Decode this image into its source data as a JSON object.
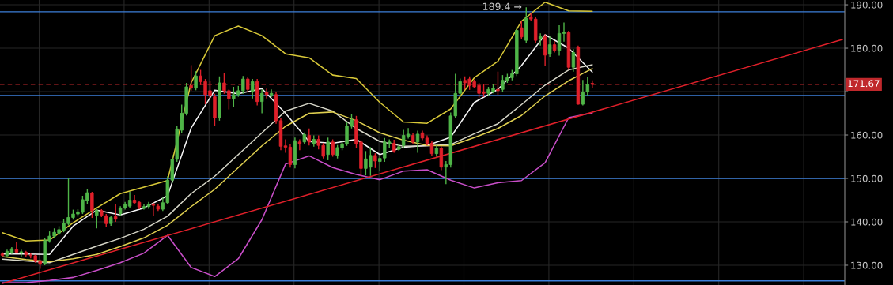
{
  "chart_data": {
    "type": "candlestick",
    "categories": [
      null,
      null,
      null,
      null,
      null,
      null,
      null,
      null,
      null,
      null,
      null,
      null,
      null,
      null,
      null,
      null,
      null,
      null,
      null,
      null,
      null,
      null,
      null,
      null,
      null,
      null,
      null,
      null,
      null,
      null,
      null,
      null,
      null,
      null,
      null,
      null,
      null,
      null,
      null,
      null,
      null,
      null,
      null,
      null,
      null,
      null,
      null,
      null,
      null,
      null,
      null,
      null,
      null,
      null,
      null,
      null,
      null,
      null,
      null,
      null,
      null,
      null,
      null,
      null,
      null,
      null,
      null,
      null,
      null,
      null,
      null,
      null,
      null,
      null,
      null,
      null,
      null,
      null,
      null,
      null,
      null,
      null,
      null,
      null,
      null,
      null,
      null,
      null,
      null,
      null,
      null,
      null,
      null,
      null,
      null,
      null,
      null,
      null,
      null,
      null,
      null,
      null,
      null,
      null,
      null,
      null,
      null,
      null,
      null,
      null,
      null,
      null,
      null,
      null,
      null,
      null,
      null,
      null,
      null,
      null,
      null,
      null,
      null,
      null,
      null,
      null,
      null,
      null,
      null,
      null,
      null,
      null,
      null,
      null,
      null,
      null,
      null,
      null,
      null,
      null,
      null,
      null,
      null,
      null,
      null,
      null,
      null,
      null,
      null,
      null,
      null,
      null,
      null,
      null,
      null,
      null,
      null,
      null,
      null,
      null,
      null,
      null,
      null,
      null,
      null,
      null,
      null,
      null,
      null,
      null,
      null,
      null,
      null,
      null,
      null,
      null,
      null,
      null,
      null
    ],
    "ohlc": [
      [
        132.6,
        133,
        131.8,
        132.3
      ],
      [
        132.2,
        133.6,
        131.9,
        133.2
      ],
      [
        132.9,
        134.2,
        132.6,
        133.8
      ],
      [
        133.6,
        135.4,
        132.8,
        133.0
      ],
      [
        132.8,
        133.6,
        132.0,
        133.1
      ],
      [
        133.0,
        133.3,
        131.9,
        132.4
      ],
      [
        132.3,
        132.8,
        131.6,
        132.2
      ],
      [
        132.2,
        132.4,
        130.6,
        130.9
      ],
      [
        131.0,
        131.3,
        129.2,
        130.2
      ],
      [
        130.3,
        136.2,
        130.0,
        135.7
      ],
      [
        135.6,
        137.8,
        135.2,
        136.7
      ],
      [
        136.7,
        138.5,
        136.3,
        137.6
      ],
      [
        137.4,
        139.0,
        137.0,
        138.2
      ],
      [
        138.1,
        140.6,
        137.6,
        139.7
      ],
      [
        139.6,
        150.0,
        139.2,
        141.0
      ],
      [
        141.0,
        142.8,
        140.5,
        141.8
      ],
      [
        141.8,
        142.9,
        141.2,
        142.3
      ],
      [
        142.2,
        146.0,
        141.8,
        145.1
      ],
      [
        144.9,
        147.6,
        144.0,
        146.7
      ],
      [
        146.6,
        146.9,
        140.9,
        142.6
      ],
      [
        141.5,
        143.0,
        138.5,
        142.6
      ],
      [
        142.6,
        142.9,
        141.1,
        141.5
      ],
      [
        141.4,
        141.8,
        138.9,
        139.6
      ],
      [
        139.6,
        141.4,
        139.1,
        141.0
      ],
      [
        141.2,
        144.2,
        140.0,
        140.6
      ],
      [
        141.9,
        143.6,
        141.3,
        143.2
      ],
      [
        143.2,
        144.6,
        142.8,
        144.1
      ],
      [
        143.6,
        146.9,
        143.1,
        145.0
      ],
      [
        145.0,
        146.2,
        144.0,
        144.4
      ],
      [
        144.5,
        144.9,
        142.9,
        143.4
      ],
      [
        143.1,
        144.0,
        142.8,
        143.5
      ],
      [
        143.5,
        144.6,
        143.0,
        144.1
      ],
      [
        144.0,
        144.4,
        141.4,
        143.8
      ],
      [
        143.6,
        144.0,
        142.5,
        142.9
      ],
      [
        142.9,
        145.6,
        142.5,
        144.4
      ],
      [
        144.4,
        150.5,
        144.0,
        149.6
      ],
      [
        149.6,
        155.5,
        149.0,
        154.4
      ],
      [
        154.4,
        162.0,
        153.8,
        161.4
      ],
      [
        161.1,
        167.0,
        160.5,
        165.0
      ],
      [
        165.0,
        172.0,
        164.5,
        171.1
      ],
      [
        171.4,
        176.1,
        170.2,
        170.8
      ],
      [
        170.8,
        174.7,
        170.3,
        173.6
      ],
      [
        173.6,
        175.0,
        171.5,
        172.3
      ],
      [
        172.3,
        172.9,
        167.1,
        169.3
      ],
      [
        170.2,
        172.5,
        168.5,
        169.2
      ],
      [
        168.8,
        169.5,
        162.1,
        164.0
      ],
      [
        164.0,
        173.5,
        163.3,
        172.0
      ],
      [
        172.0,
        174.2,
        169.5,
        170.2
      ],
      [
        170.2,
        170.5,
        165.9,
        168.4
      ],
      [
        168.4,
        171.1,
        166.5,
        169.3
      ],
      [
        169.3,
        171.3,
        168.8,
        170.2
      ],
      [
        170.2,
        173.6,
        169.5,
        172.9
      ],
      [
        172.9,
        173.4,
        169.9,
        170.5
      ],
      [
        169.9,
        172.9,
        168.4,
        172.3
      ],
      [
        172.3,
        172.9,
        166.8,
        167.7
      ],
      [
        167.7,
        170.5,
        165.0,
        169.6
      ],
      [
        169.9,
        170.7,
        168.4,
        169.3
      ],
      [
        169.2,
        170.5,
        168.7,
        169.6
      ],
      [
        169.3,
        170.0,
        162.6,
        163.3
      ],
      [
        163.3,
        164.0,
        156.5,
        157.4
      ],
      [
        157.5,
        159.0,
        155.9,
        157.2
      ],
      [
        157.2,
        158.0,
        152.5,
        153.2
      ],
      [
        153.2,
        159.4,
        152.3,
        158.7
      ],
      [
        158.4,
        159.0,
        156.5,
        157.9
      ],
      [
        158.4,
        160.6,
        157.9,
        160.1
      ],
      [
        159.9,
        161.5,
        157.6,
        158.4
      ],
      [
        157.9,
        159.9,
        157.3,
        159.0
      ],
      [
        159.0,
        159.9,
        156.7,
        157.6
      ],
      [
        157.6,
        158.2,
        154.6,
        155.1
      ],
      [
        155.5,
        159.4,
        154.2,
        158.4
      ],
      [
        158.4,
        159.0,
        155.0,
        155.5
      ],
      [
        155.3,
        157.7,
        154.6,
        157.1
      ],
      [
        157.1,
        158.5,
        156.5,
        158.0
      ],
      [
        158.0,
        163.0,
        157.5,
        162.0
      ],
      [
        162.0,
        164.8,
        161.5,
        163.5
      ],
      [
        163.5,
        164.4,
        157.0,
        157.9
      ],
      [
        158.4,
        158.8,
        150.5,
        152.3
      ],
      [
        152.3,
        156.3,
        150.7,
        154.5
      ],
      [
        152.6,
        157.2,
        150.6,
        155.3
      ],
      [
        155.3,
        155.8,
        152.4,
        154.0
      ],
      [
        153.9,
        155.2,
        151.8,
        154.6
      ],
      [
        154.7,
        159.3,
        153.8,
        158.4
      ],
      [
        158.0,
        159.0,
        157.1,
        158.4
      ],
      [
        158.1,
        158.9,
        155.9,
        156.3
      ],
      [
        156.7,
        158.0,
        156.4,
        157.3
      ],
      [
        157.6,
        161.2,
        157.0,
        159.9
      ],
      [
        159.7,
        161.6,
        159.2,
        160.2
      ],
      [
        159.9,
        160.5,
        157.9,
        158.4
      ],
      [
        158.4,
        161.0,
        155.9,
        160.2
      ],
      [
        160.5,
        161.0,
        158.8,
        159.3
      ],
      [
        159.3,
        159.9,
        157.6,
        158.1
      ],
      [
        158.1,
        158.6,
        155.1,
        155.7
      ],
      [
        155.7,
        157.6,
        155.0,
        156.9
      ],
      [
        156.9,
        157.4,
        151.9,
        152.6
      ],
      [
        152.6,
        154.0,
        148.7,
        153.2
      ],
      [
        153.2,
        165.2,
        152.5,
        164.4
      ],
      [
        164.4,
        174.1,
        163.8,
        169.6
      ],
      [
        169.6,
        173.0,
        169.0,
        172.3
      ],
      [
        172.6,
        173.5,
        170.5,
        172.0
      ],
      [
        172.9,
        173.5,
        170.4,
        171.4
      ],
      [
        172.3,
        172.8,
        170.8,
        171.1
      ],
      [
        171.4,
        172.0,
        168.6,
        169.6
      ],
      [
        169.9,
        171.7,
        168.8,
        169.6
      ],
      [
        169.6,
        171.1,
        169.0,
        170.5
      ],
      [
        169.9,
        171.7,
        169.6,
        170.8
      ],
      [
        170.5,
        174.6,
        169.2,
        170.2
      ],
      [
        170.5,
        173.8,
        170.0,
        172.6
      ],
      [
        172.6,
        174.1,
        172.0,
        173.2
      ],
      [
        173.2,
        175.0,
        172.6,
        174.1
      ],
      [
        174.1,
        184.8,
        173.6,
        184.1
      ],
      [
        184.7,
        186.3,
        182.0,
        182.6
      ],
      [
        181.8,
        189.4,
        181.2,
        186.9
      ],
      [
        187.1,
        188.0,
        186.2,
        186.7
      ],
      [
        186.7,
        187.3,
        181.2,
        181.8
      ],
      [
        182.1,
        183.4,
        180.6,
        182.7
      ],
      [
        182.6,
        183.2,
        175.9,
        178.4
      ],
      [
        178.6,
        182.7,
        178.0,
        180.8
      ],
      [
        180.8,
        181.6,
        179.0,
        179.5
      ],
      [
        179.5,
        185.3,
        178.3,
        183.4
      ],
      [
        183.4,
        185.9,
        181.5,
        183.7
      ],
      [
        183.6,
        184.0,
        175.0,
        175.6
      ],
      [
        175.6,
        179.8,
        174.6,
        179.0
      ],
      [
        180.2,
        180.6,
        167.0,
        167.1
      ],
      [
        167.1,
        172.7,
        166.8,
        169.9
      ],
      [
        169.9,
        173.4,
        169.0,
        171.7
      ],
      [
        171.9,
        172.6,
        170.9,
        171.67
      ],
      null,
      null,
      null,
      null,
      null,
      null,
      null,
      null,
      null,
      null,
      null,
      null,
      null,
      null,
      null,
      null,
      null,
      null,
      null,
      null,
      null,
      null,
      null,
      null,
      null,
      null,
      null,
      null,
      null,
      null,
      null,
      null,
      null,
      null,
      null,
      null,
      null,
      null,
      null,
      null,
      null,
      null,
      null,
      null,
      null,
      null,
      null,
      null,
      null,
      null,
      null,
      null,
      null
    ],
    "colors": [
      "#e0202a",
      "#4fb548",
      "#4fb548",
      "#e0202a",
      "#4fb548",
      "#e0202a",
      "#e0202a",
      "#e0202a",
      "#e0202a",
      "#4fb548",
      "#4fb548",
      "#4fb548",
      "#4fb548",
      "#4fb548",
      "#4fb548",
      "#4fb548",
      "#4fb548",
      "#4fb548",
      "#4fb548",
      "#e0202a",
      "#4fb548",
      "#e0202a",
      "#e0202a",
      "#4fb548",
      "#e0202a",
      "#4fb548",
      "#4fb548",
      "#4fb548",
      "#e0202a",
      "#e0202a",
      "#4fb548",
      "#4fb548",
      "#e0202a",
      "#e0202a",
      "#4fb548",
      "#4fb548",
      "#4fb548",
      "#4fb548",
      "#4fb548",
      "#4fb548",
      "#e0202a",
      "#4fb548",
      "#e0202a",
      "#e0202a",
      "#e0202a",
      "#e0202a",
      "#4fb548",
      "#e0202a",
      "#e0202a",
      "#4fb548",
      "#4fb548",
      "#4fb548",
      "#e0202a",
      "#4fb548",
      "#e0202a",
      "#4fb548",
      "#e0202a",
      "#4fb548",
      "#e0202a",
      "#e0202a",
      "#e0202a",
      "#e0202a",
      "#4fb548",
      "#e0202a",
      "#4fb548",
      "#e0202a",
      "#4fb548",
      "#e0202a",
      "#e0202a",
      "#4fb548",
      "#e0202a",
      "#4fb548",
      "#4fb548",
      "#4fb548",
      "#4fb548",
      "#e0202a",
      "#e0202a",
      "#4fb548",
      "#4fb548",
      "#e0202a",
      "#4fb548",
      "#4fb548",
      "#4fb548",
      "#e0202a",
      "#4fb548",
      "#4fb548",
      "#4fb548",
      "#e0202a",
      "#4fb548",
      "#e0202a",
      "#e0202a",
      "#e0202a",
      "#4fb548",
      "#e0202a",
      "#4fb548",
      "#4fb548",
      "#4fb548",
      "#4fb548",
      "#e0202a",
      "#e0202a",
      "#e0202a",
      "#e0202a",
      "#e0202a",
      "#4fb548",
      "#4fb548",
      "#e0202a",
      "#4fb548",
      "#4fb548",
      "#4fb548",
      "#4fb548",
      "#e0202a",
      "#4fb548",
      "#e0202a",
      "#e0202a",
      "#4fb548",
      "#e0202a",
      "#4fb548",
      "#e0202a",
      "#4fb548",
      "#4fb548",
      "#e0202a",
      "#4fb548",
      "#e0202a",
      "#4fb548",
      "#4fb548",
      "#e0202a",
      null,
      null,
      null,
      null,
      null,
      null,
      null,
      null,
      null,
      null,
      null,
      null,
      null,
      null,
      null,
      null,
      null,
      null,
      null,
      null,
      null,
      null,
      null,
      null,
      null,
      null,
      null,
      null,
      null,
      null,
      null,
      null,
      null,
      null,
      null,
      null,
      null,
      null,
      null,
      null,
      null,
      null,
      null,
      null,
      null,
      null,
      null,
      null,
      null,
      null,
      null,
      null,
      null
    ],
    "series": [
      {
        "type": "line",
        "color": "#d8c838",
        "values": [
          137.5,
          null,
          null,
          null,
          null,
          135.6,
          null,
          null,
          null,
          null,
          135.8,
          null,
          null,
          null,
          null,
          139.8,
          null,
          null,
          null,
          null,
          143.2,
          null,
          null,
          null,
          null,
          146.5,
          null,
          null,
          null,
          null,
          148.0,
          null,
          null,
          null,
          null,
          149.5,
          null,
          null,
          null,
          null,
          172.0,
          null,
          null,
          null,
          null,
          182.9,
          null,
          null,
          null,
          null,
          185.1,
          null,
          null,
          null,
          null,
          182.9,
          null,
          null,
          null,
          null,
          178.7,
          null,
          null,
          null,
          null,
          177.8,
          null,
          null,
          null,
          null,
          173.8,
          null,
          null,
          null,
          null,
          173.0,
          null,
          null,
          null,
          null,
          167.5,
          null,
          null,
          null,
          null,
          163.0,
          null,
          null,
          null,
          null,
          162.7,
          null,
          null,
          null,
          null,
          166.0,
          null,
          null,
          null,
          null,
          173.2,
          null,
          null,
          null,
          null,
          177.0,
          null,
          null,
          null,
          null,
          186.2,
          null,
          null,
          null,
          null,
          190.6,
          null,
          null,
          null,
          null,
          188.6,
          null,
          null,
          null,
          null,
          188.5,
          null,
          null,
          null,
          null,
          null,
          null,
          null,
          null,
          null,
          null,
          null,
          null,
          null,
          null,
          null,
          null,
          null,
          null,
          null,
          null,
          null,
          null,
          null,
          null,
          null,
          null,
          null,
          null,
          null,
          null,
          null,
          null,
          null,
          null,
          null,
          null,
          null,
          null,
          null,
          null,
          null,
          null,
          null,
          null,
          null,
          null,
          null,
          null,
          null,
          null,
          null,
          null,
          null
        ]
      },
      {
        "type": "line",
        "color": "#c84ec8",
        "values": [
          126.0,
          null,
          null,
          null,
          null,
          126.0,
          null,
          null,
          null,
          null,
          126.5,
          null,
          null,
          null,
          null,
          127.2,
          null,
          null,
          null,
          null,
          128.8,
          null,
          null,
          null,
          null,
          130.6,
          null,
          null,
          null,
          null,
          132.8,
          null,
          null,
          null,
          null,
          136.9,
          null,
          null,
          null,
          null,
          129.5,
          null,
          null,
          null,
          null,
          127.4,
          null,
          null,
          null,
          null,
          131.5,
          null,
          null,
          null,
          null,
          140.5,
          null,
          null,
          null,
          null,
          153.3,
          null,
          null,
          null,
          null,
          155.2,
          null,
          null,
          null,
          null,
          152.5,
          null,
          null,
          null,
          null,
          150.9,
          null,
          null,
          null,
          null,
          149.7,
          null,
          null,
          null,
          null,
          151.7,
          null,
          null,
          null,
          null,
          152.0,
          null,
          null,
          null,
          null,
          149.6,
          null,
          null,
          null,
          null,
          147.8,
          null,
          null,
          null,
          null,
          149.0,
          null,
          null,
          null,
          null,
          149.5,
          null,
          null,
          null,
          null,
          153.6,
          null,
          null,
          null,
          null,
          164.0,
          null,
          null,
          null,
          null,
          165.1,
          null,
          null,
          null,
          null,
          null,
          null,
          null,
          null,
          null,
          null,
          null,
          null,
          null,
          null,
          null,
          null,
          null,
          null,
          null,
          null,
          null,
          null,
          null,
          null,
          null,
          null,
          null,
          null,
          null,
          null,
          null,
          null,
          null,
          null,
          null,
          null,
          null,
          null,
          null,
          null,
          null,
          null,
          null,
          null,
          null,
          null,
          null,
          null,
          null,
          null,
          null,
          null,
          null
        ]
      },
      {
        "type": "line",
        "color": "#f4f4f4",
        "values": [
          132.6,
          null,
          null,
          null,
          null,
          132.6,
          null,
          null,
          null,
          null,
          132.5,
          null,
          null,
          null,
          null,
          139.0,
          null,
          null,
          null,
          null,
          142.7,
          null,
          null,
          null,
          null,
          141.6,
          null,
          null,
          null,
          null,
          143.2,
          null,
          null,
          null,
          null,
          146.0,
          null,
          null,
          null,
          null,
          161.6,
          null,
          null,
          null,
          null,
          170.3,
          null,
          null,
          null,
          null,
          169.5,
          null,
          null,
          null,
          null,
          170.7,
          null,
          null,
          null,
          null,
          165.0,
          null,
          null,
          null,
          null,
          158.5,
          null,
          null,
          null,
          null,
          158.1,
          null,
          null,
          null,
          null,
          159.0,
          null,
          null,
          null,
          null,
          155.5,
          null,
          null,
          null,
          null,
          157.2,
          null,
          null,
          null,
          null,
          157.6,
          null,
          null,
          null,
          null,
          159.5,
          null,
          null,
          null,
          null,
          167.5,
          null,
          null,
          null,
          null,
          170.5,
          null,
          null,
          null,
          null,
          176.0,
          null,
          null,
          null,
          null,
          183.1,
          null,
          null,
          null,
          null,
          180.0,
          null,
          null,
          null,
          null,
          174.5,
          null,
          null,
          null,
          null,
          null,
          null,
          null,
          null,
          null,
          null,
          null,
          null,
          null,
          null,
          null,
          null,
          null,
          null,
          null,
          null,
          null,
          null,
          null,
          null,
          null,
          null,
          null,
          null,
          null,
          null,
          null,
          null,
          null,
          null,
          null,
          null,
          null,
          null,
          null,
          null,
          null,
          null,
          null,
          null,
          null,
          null,
          null,
          null,
          null,
          null,
          null,
          null,
          null
        ]
      },
      {
        "type": "line",
        "color": "#d6d6c8",
        "values": [
          131.4,
          null,
          null,
          null,
          null,
          131.0,
          null,
          null,
          null,
          null,
          130.6,
          null,
          null,
          null,
          null,
          132.5,
          null,
          null,
          null,
          null,
          134.4,
          null,
          null,
          null,
          null,
          136.2,
          null,
          null,
          null,
          null,
          138.3,
          null,
          null,
          null,
          null,
          141.3,
          null,
          null,
          null,
          null,
          146.5,
          null,
          null,
          null,
          null,
          150.5,
          null,
          null,
          null,
          null,
          155.5,
          null,
          null,
          null,
          null,
          160.5,
          null,
          null,
          null,
          null,
          165.5,
          null,
          null,
          null,
          null,
          167.3,
          null,
          null,
          null,
          null,
          165.5,
          null,
          null,
          null,
          null,
          161.5,
          null,
          null,
          null,
          null,
          158.5,
          null,
          null,
          null,
          null,
          157.4,
          null,
          null,
          null,
          null,
          157.5,
          null,
          null,
          null,
          null,
          157.8,
          null,
          null,
          null,
          null,
          160.3,
          null,
          null,
          null,
          null,
          162.6,
          null,
          null,
          null,
          null,
          167.0,
          null,
          null,
          null,
          null,
          171.5,
          null,
          null,
          null,
          null,
          175.0,
          null,
          null,
          null,
          null,
          176.2,
          null,
          null,
          null,
          null,
          null,
          null,
          null,
          null,
          null,
          null,
          null,
          null,
          null,
          null,
          null,
          null,
          null,
          null,
          null,
          null,
          null,
          null,
          null,
          null,
          null,
          null,
          null,
          null,
          null,
          null,
          null,
          null,
          null,
          null,
          null,
          null,
          null,
          null,
          null,
          null,
          null,
          null,
          null,
          null,
          null,
          null,
          null,
          null,
          null,
          null,
          null,
          null,
          null
        ]
      },
      {
        "type": "line",
        "color": "#e0d050",
        "values": [
          132.0,
          null,
          null,
          null,
          null,
          131.3,
          null,
          null,
          null,
          null,
          130.8,
          null,
          null,
          null,
          null,
          131.5,
          null,
          null,
          null,
          null,
          132.5,
          null,
          null,
          null,
          null,
          134.3,
          null,
          null,
          null,
          null,
          136.3,
          null,
          null,
          null,
          null,
          139.2,
          null,
          null,
          null,
          null,
          143.5,
          null,
          null,
          null,
          null,
          147.5,
          null,
          null,
          null,
          null,
          152.5,
          null,
          null,
          null,
          null,
          157.5,
          null,
          null,
          null,
          null,
          162.0,
          null,
          null,
          null,
          null,
          165.0,
          null,
          null,
          null,
          null,
          165.3,
          null,
          null,
          null,
          null,
          163.3,
          null,
          null,
          null,
          null,
          160.5,
          null,
          null,
          null,
          null,
          158.8,
          null,
          null,
          null,
          null,
          157.6,
          null,
          null,
          null,
          null,
          157.5,
          null,
          null,
          null,
          null,
          159.4,
          null,
          null,
          null,
          null,
          161.5,
          null,
          null,
          null,
          null,
          164.5,
          null,
          null,
          null,
          null,
          169.0,
          null,
          null,
          null,
          null,
          172.5,
          null,
          null,
          null,
          null,
          175.3,
          null,
          null,
          null,
          null,
          null,
          null,
          null,
          null,
          null,
          null,
          null,
          null,
          null,
          null,
          null,
          null,
          null,
          null,
          null,
          null,
          null,
          null,
          null,
          null,
          null,
          null,
          null,
          null,
          null,
          null,
          null,
          null,
          null,
          null,
          null,
          null,
          null,
          null,
          null,
          null,
          null,
          null,
          null,
          null,
          null,
          null,
          null,
          null,
          null,
          null,
          null,
          null,
          null
        ]
      },
      {
        "type": "line",
        "color": "#e0202a",
        "values": [
          125.8,
          null,
          null,
          null,
          null,
          null,
          null,
          null,
          null,
          null,
          null,
          null,
          null,
          null,
          null,
          null,
          null,
          null,
          null,
          null,
          null,
          null,
          null,
          null,
          null,
          null,
          null,
          null,
          null,
          null,
          null,
          null,
          null,
          null,
          null,
          null,
          null,
          null,
          null,
          null,
          null,
          null,
          null,
          null,
          null,
          null,
          null,
          null,
          null,
          null,
          null,
          null,
          null,
          null,
          null,
          null,
          null,
          null,
          null,
          null,
          null,
          null,
          null,
          null,
          null,
          null,
          null,
          null,
          null,
          null,
          null,
          null,
          null,
          null,
          null,
          null,
          null,
          null,
          null,
          null,
          null,
          null,
          null,
          null,
          null,
          null,
          null,
          null,
          null,
          null,
          null,
          null,
          null,
          null,
          null,
          null,
          null,
          null,
          null,
          null,
          null,
          null,
          null,
          null,
          null,
          null,
          null,
          null,
          null,
          null,
          null,
          null,
          null,
          null,
          null,
          null,
          null,
          null,
          null,
          null,
          null,
          null,
          null,
          null,
          null,
          null,
          null,
          null,
          null,
          null,
          null,
          null,
          null,
          null,
          null,
          null,
          null,
          null,
          null,
          null,
          null,
          null,
          null,
          null,
          null,
          null,
          null,
          null,
          null,
          null,
          null,
          null,
          null,
          null,
          null,
          null,
          null,
          null,
          null,
          null,
          null,
          null,
          null,
          null,
          null,
          null,
          null,
          null,
          null,
          null,
          null,
          null,
          null,
          null,
          null,
          null,
          null,
          null,
          182.0
        ]
      }
    ],
    "ref_lines": [
      {
        "axis": "y",
        "value": 188.4,
        "color": "#3d7fd9"
      },
      {
        "axis": "y",
        "value": 169.1,
        "color": "#3d7fd9"
      },
      {
        "axis": "y",
        "value": 150.0,
        "color": "#3d7fd9"
      },
      {
        "axis": "y",
        "value": 126.4,
        "color": "#3d7fd9"
      },
      {
        "axis": "y",
        "value": 171.67,
        "label": "171.67",
        "color": "#c0282c",
        "line_style": "dashed"
      }
    ],
    "annotations": [
      "189.4 →"
    ],
    "ylim": [
      125.45,
      191.1
    ],
    "yticks": [
      {
        "value": 130,
        "label": "130.00"
      },
      {
        "value": 140,
        "label": "140.00"
      },
      {
        "value": 150,
        "label": "150.00"
      },
      {
        "value": 160,
        "label": "160.00"
      },
      {
        "value": 170,
        "label": null
      },
      {
        "value": 180,
        "label": "180.00"
      },
      {
        "value": 190,
        "label": "190.00"
      }
    ],
    "grid": true,
    "tick_labels": "y"
  }
}
